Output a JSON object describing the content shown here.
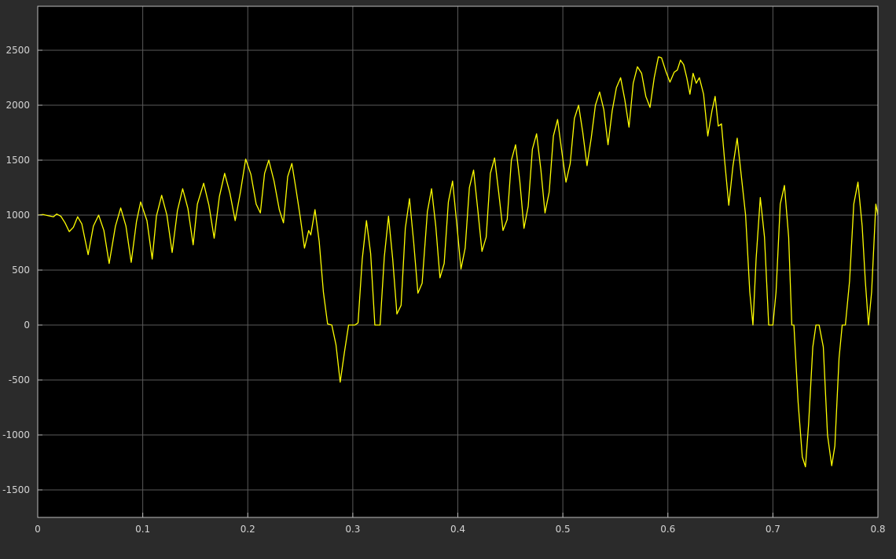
{
  "colors": {
    "figure_background": "#2b2b2b",
    "plot_background": "#000000",
    "grid": "#5a5a5a",
    "axes_frame": "#bdbdbd",
    "tick_label": "#d4d4d4",
    "signal": "#ffff00"
  },
  "chart_data": {
    "type": "line",
    "title": "",
    "xlabel": "",
    "ylabel": "",
    "xlim": [
      0,
      0.8
    ],
    "ylim": [
      -1750,
      2900
    ],
    "grid": true,
    "legend": "none",
    "x_ticks": [
      {
        "value": 0,
        "label": "0"
      },
      {
        "value": 0.1,
        "label": "0.1"
      },
      {
        "value": 0.2,
        "label": "0.2"
      },
      {
        "value": 0.3,
        "label": "0.3"
      },
      {
        "value": 0.4,
        "label": "0.4"
      },
      {
        "value": 0.5,
        "label": "0.5"
      },
      {
        "value": 0.6,
        "label": "0.6"
      },
      {
        "value": 0.7,
        "label": "0.7"
      },
      {
        "value": 0.8,
        "label": "0.8"
      }
    ],
    "y_ticks": [
      {
        "value": 2500,
        "label": "2500"
      },
      {
        "value": 2000,
        "label": "2000"
      },
      {
        "value": 1500,
        "label": "1500"
      },
      {
        "value": 1000,
        "label": "1000"
      },
      {
        "value": 500,
        "label": "500"
      },
      {
        "value": 0,
        "label": "0"
      },
      {
        "value": -500,
        "label": "-500"
      },
      {
        "value": -1000,
        "label": "-1000"
      },
      {
        "value": -1500,
        "label": "-1500"
      }
    ],
    "series": [
      {
        "color": "#ffff00",
        "points": [
          [
            0.0,
            1000
          ],
          [
            0.005,
            1005
          ],
          [
            0.01,
            995
          ],
          [
            0.015,
            985
          ],
          [
            0.018,
            1010
          ],
          [
            0.022,
            990
          ],
          [
            0.026,
            930
          ],
          [
            0.03,
            850
          ],
          [
            0.034,
            890
          ],
          [
            0.038,
            985
          ],
          [
            0.042,
            920
          ],
          [
            0.048,
            640
          ],
          [
            0.053,
            900
          ],
          [
            0.058,
            1000
          ],
          [
            0.063,
            860
          ],
          [
            0.068,
            560
          ],
          [
            0.074,
            900
          ],
          [
            0.079,
            1065
          ],
          [
            0.084,
            900
          ],
          [
            0.089,
            570
          ],
          [
            0.094,
            940
          ],
          [
            0.098,
            1120
          ],
          [
            0.104,
            950
          ],
          [
            0.109,
            600
          ],
          [
            0.113,
            990
          ],
          [
            0.118,
            1180
          ],
          [
            0.123,
            1000
          ],
          [
            0.128,
            660
          ],
          [
            0.133,
            1040
          ],
          [
            0.138,
            1240
          ],
          [
            0.143,
            1060
          ],
          [
            0.148,
            730
          ],
          [
            0.152,
            1100
          ],
          [
            0.158,
            1290
          ],
          [
            0.163,
            1090
          ],
          [
            0.168,
            790
          ],
          [
            0.173,
            1170
          ],
          [
            0.178,
            1380
          ],
          [
            0.183,
            1200
          ],
          [
            0.188,
            950
          ],
          [
            0.193,
            1210
          ],
          [
            0.198,
            1510
          ],
          [
            0.203,
            1370
          ],
          [
            0.208,
            1100
          ],
          [
            0.212,
            1020
          ],
          [
            0.216,
            1380
          ],
          [
            0.22,
            1500
          ],
          [
            0.225,
            1310
          ],
          [
            0.23,
            1050
          ],
          [
            0.234,
            930
          ],
          [
            0.238,
            1350
          ],
          [
            0.242,
            1470
          ],
          [
            0.246,
            1230
          ],
          [
            0.25,
            980
          ],
          [
            0.254,
            700
          ],
          [
            0.258,
            860
          ],
          [
            0.26,
            820
          ],
          [
            0.264,
            1050
          ],
          [
            0.268,
            760
          ],
          [
            0.272,
            300
          ],
          [
            0.276,
            10
          ],
          [
            0.28,
            0
          ],
          [
            0.284,
            -180
          ],
          [
            0.288,
            -520
          ],
          [
            0.292,
            -250
          ],
          [
            0.296,
            0
          ],
          [
            0.302,
            0
          ],
          [
            0.305,
            20
          ],
          [
            0.309,
            600
          ],
          [
            0.313,
            950
          ],
          [
            0.317,
            650
          ],
          [
            0.321,
            0
          ],
          [
            0.326,
            0
          ],
          [
            0.33,
            620
          ],
          [
            0.334,
            990
          ],
          [
            0.338,
            600
          ],
          [
            0.342,
            100
          ],
          [
            0.346,
            180
          ],
          [
            0.35,
            880
          ],
          [
            0.354,
            1150
          ],
          [
            0.358,
            750
          ],
          [
            0.362,
            290
          ],
          [
            0.366,
            380
          ],
          [
            0.371,
            1030
          ],
          [
            0.375,
            1240
          ],
          [
            0.379,
            900
          ],
          [
            0.383,
            430
          ],
          [
            0.387,
            560
          ],
          [
            0.391,
            1120
          ],
          [
            0.395,
            1310
          ],
          [
            0.399,
            920
          ],
          [
            0.403,
            510
          ],
          [
            0.407,
            700
          ],
          [
            0.411,
            1250
          ],
          [
            0.415,
            1410
          ],
          [
            0.419,
            1050
          ],
          [
            0.423,
            670
          ],
          [
            0.427,
            800
          ],
          [
            0.431,
            1380
          ],
          [
            0.435,
            1520
          ],
          [
            0.439,
            1200
          ],
          [
            0.443,
            860
          ],
          [
            0.447,
            960
          ],
          [
            0.451,
            1500
          ],
          [
            0.455,
            1640
          ],
          [
            0.459,
            1310
          ],
          [
            0.463,
            880
          ],
          [
            0.467,
            1080
          ],
          [
            0.471,
            1600
          ],
          [
            0.475,
            1740
          ],
          [
            0.479,
            1420
          ],
          [
            0.483,
            1020
          ],
          [
            0.487,
            1210
          ],
          [
            0.491,
            1720
          ],
          [
            0.495,
            1870
          ],
          [
            0.499,
            1580
          ],
          [
            0.503,
            1300
          ],
          [
            0.507,
            1470
          ],
          [
            0.511,
            1880
          ],
          [
            0.515,
            2000
          ],
          [
            0.519,
            1750
          ],
          [
            0.523,
            1450
          ],
          [
            0.527,
            1700
          ],
          [
            0.531,
            2000
          ],
          [
            0.535,
            2120
          ],
          [
            0.539,
            1960
          ],
          [
            0.543,
            1640
          ],
          [
            0.547,
            1950
          ],
          [
            0.551,
            2160
          ],
          [
            0.555,
            2250
          ],
          [
            0.559,
            2050
          ],
          [
            0.563,
            1800
          ],
          [
            0.567,
            2200
          ],
          [
            0.571,
            2350
          ],
          [
            0.575,
            2290
          ],
          [
            0.579,
            2080
          ],
          [
            0.583,
            1980
          ],
          [
            0.587,
            2250
          ],
          [
            0.591,
            2440
          ],
          [
            0.594,
            2430
          ],
          [
            0.598,
            2310
          ],
          [
            0.602,
            2210
          ],
          [
            0.606,
            2300
          ],
          [
            0.609,
            2320
          ],
          [
            0.612,
            2410
          ],
          [
            0.615,
            2370
          ],
          [
            0.618,
            2250
          ],
          [
            0.621,
            2100
          ],
          [
            0.624,
            2290
          ],
          [
            0.627,
            2200
          ],
          [
            0.63,
            2250
          ],
          [
            0.634,
            2100
          ],
          [
            0.638,
            1720
          ],
          [
            0.642,
            1950
          ],
          [
            0.645,
            2080
          ],
          [
            0.648,
            1810
          ],
          [
            0.651,
            1830
          ],
          [
            0.654,
            1500
          ],
          [
            0.658,
            1090
          ],
          [
            0.662,
            1450
          ],
          [
            0.666,
            1700
          ],
          [
            0.67,
            1350
          ],
          [
            0.674,
            1000
          ],
          [
            0.678,
            300
          ],
          [
            0.681,
            0
          ],
          [
            0.684,
            600
          ],
          [
            0.688,
            1160
          ],
          [
            0.692,
            800
          ],
          [
            0.696,
            0
          ],
          [
            0.7,
            0
          ],
          [
            0.703,
            300
          ],
          [
            0.707,
            1100
          ],
          [
            0.711,
            1270
          ],
          [
            0.715,
            800
          ],
          [
            0.718,
            0
          ],
          [
            0.72,
            0
          ],
          [
            0.724,
            -700
          ],
          [
            0.728,
            -1200
          ],
          [
            0.731,
            -1290
          ],
          [
            0.734,
            -900
          ],
          [
            0.738,
            -200
          ],
          [
            0.741,
            0
          ],
          [
            0.744,
            0
          ],
          [
            0.748,
            -200
          ],
          [
            0.752,
            -1000
          ],
          [
            0.756,
            -1280
          ],
          [
            0.759,
            -1100
          ],
          [
            0.763,
            -300
          ],
          [
            0.766,
            0
          ],
          [
            0.769,
            0
          ],
          [
            0.773,
            400
          ],
          [
            0.777,
            1100
          ],
          [
            0.781,
            1300
          ],
          [
            0.785,
            900
          ],
          [
            0.788,
            400
          ],
          [
            0.791,
            0
          ],
          [
            0.794,
            300
          ],
          [
            0.798,
            1100
          ],
          [
            0.8,
            1000
          ]
        ]
      }
    ]
  }
}
